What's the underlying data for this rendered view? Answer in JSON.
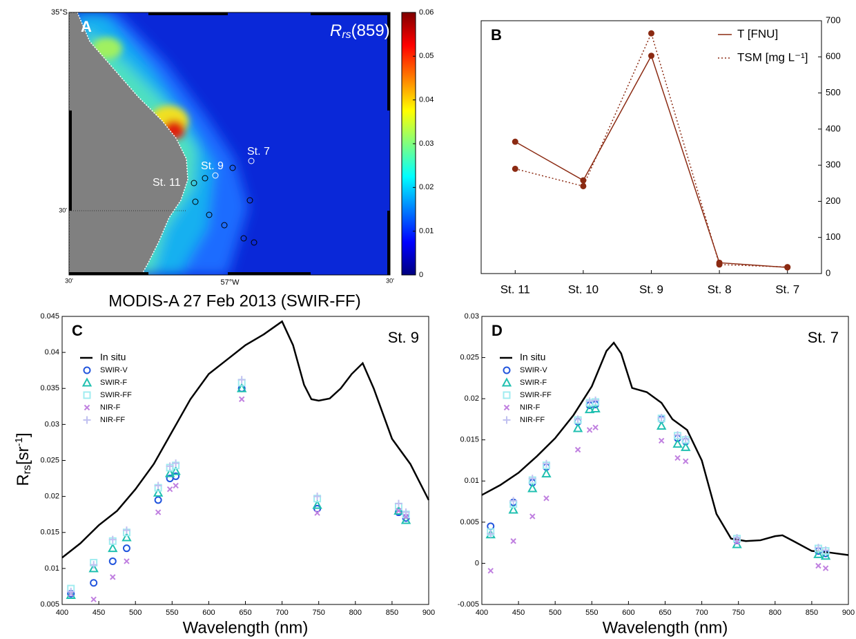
{
  "chart_data": [
    {
      "type": "map",
      "panel": "A",
      "title": "MODIS-A 27 Feb 2013 (SWIR-FF)",
      "annotation": [
        "R",
        "rs",
        "(859)"
      ],
      "lat_labels": [
        "35°S",
        "30'"
      ],
      "lon_labels": [
        "30'",
        "57°W",
        "30'"
      ],
      "stations": [
        "St. 7",
        "St. 9",
        "St. 11"
      ],
      "colorbar": {
        "lim": [
          0,
          0.06
        ],
        "ticks": [
          0,
          0.01,
          0.02,
          0.03,
          0.04,
          0.05,
          0.06
        ],
        "colormap": "jet"
      }
    },
    {
      "type": "line",
      "panel": "B",
      "categories": [
        "St. 11",
        "St. 10",
        "St. 9",
        "St. 8",
        "St. 7"
      ],
      "series": [
        {
          "name": "T [FNU]",
          "color": "#8b2a12",
          "style": "solid",
          "axis": "y2",
          "values": [
            365,
            258,
            603,
            30,
            17
          ]
        },
        {
          "name": "TSM [mg L⁻¹]",
          "color": "#8b2a12",
          "style": "dotted",
          "axis": "y2",
          "values": [
            290,
            242,
            665,
            25,
            18
          ]
        }
      ],
      "y2lim": [
        0,
        700
      ],
      "y2ticks": [
        0,
        100,
        200,
        300,
        400,
        500,
        600,
        700
      ]
    },
    {
      "type": "line",
      "panel": "C",
      "annotation": "St. 9",
      "xlabel": "Wavelength (nm)",
      "ylabel": [
        "R",
        "rs",
        "[sr",
        "-1",
        "]"
      ],
      "xlim": [
        400,
        900
      ],
      "xticks": [
        400,
        450,
        500,
        550,
        600,
        650,
        700,
        750,
        800,
        850,
        900
      ],
      "ylim": [
        0.005,
        0.045
      ],
      "yticks": [
        0.005,
        0.01,
        0.015,
        0.02,
        0.025,
        0.03,
        0.035,
        0.04,
        0.045
      ],
      "x": [
        412,
        443,
        469,
        488,
        531,
        547,
        555,
        645,
        667,
        678,
        748,
        859,
        869
      ],
      "series": [
        {
          "name": "In situ",
          "color": "#000000",
          "x": [
            400,
            425,
            450,
            475,
            500,
            525,
            550,
            575,
            600,
            625,
            650,
            675,
            700,
            715,
            730,
            740,
            750,
            765,
            780,
            795,
            810,
            825,
            850,
            875,
            900
          ],
          "values": [
            0.0115,
            0.0135,
            0.016,
            0.018,
            0.021,
            0.0245,
            0.029,
            0.0335,
            0.037,
            0.039,
            0.041,
            0.0425,
            0.0443,
            0.041,
            0.0355,
            0.0335,
            0.0333,
            0.0336,
            0.035,
            0.037,
            0.0385,
            0.035,
            0.028,
            0.0245,
            0.0195
          ]
        },
        {
          "name": "SWIR-V",
          "color": "#2255dd",
          "marker": "circle",
          "values": [
            0.0065,
            0.008,
            0.011,
            0.0128,
            0.0195,
            0.0225,
            0.0228,
            0.035,
            null,
            null,
            0.0183,
            0.0178,
            0.017
          ]
        },
        {
          "name": "SWIR-F",
          "color": "#20c0b0",
          "marker": "triangle",
          "values": [
            0.0063,
            0.01,
            0.0128,
            0.0143,
            0.0205,
            0.0232,
            0.0235,
            0.035,
            null,
            null,
            0.0188,
            0.018,
            0.0167
          ]
        },
        {
          "name": "SWIR-FF",
          "color": "#a0ecf0",
          "marker": "square",
          "values": [
            0.0072,
            0.0108,
            0.0138,
            0.015,
            0.0212,
            0.024,
            0.0243,
            0.0358,
            null,
            null,
            0.0197,
            0.0186,
            0.0175
          ]
        },
        {
          "name": "NIR-F",
          "color": "#c080e0",
          "marker": "x",
          "values": [
            0.0065,
            0.0057,
            0.0088,
            0.011,
            0.0178,
            0.021,
            0.0215,
            0.0335,
            null,
            null,
            0.0177,
            0.018,
            0.0172
          ]
        },
        {
          "name": "NIR-FF",
          "color": "#c0c0f0",
          "marker": "plus",
          "values": [
            0.0068,
            0.0105,
            0.014,
            0.0153,
            0.0215,
            0.0242,
            0.0246,
            0.0362,
            null,
            null,
            0.02,
            0.019,
            0.0178
          ]
        }
      ]
    },
    {
      "type": "line",
      "panel": "D",
      "annotation": "St. 7",
      "xlabel": "Wavelength (nm)",
      "xlim": [
        400,
        900
      ],
      "xticks": [
        400,
        450,
        500,
        550,
        600,
        650,
        700,
        750,
        800,
        850,
        900
      ],
      "ylim": [
        -0.005,
        0.03
      ],
      "yticks": [
        -0.005,
        0,
        0.005,
        0.01,
        0.015,
        0.02,
        0.025,
        0.03
      ],
      "x": [
        412,
        443,
        469,
        488,
        531,
        547,
        555,
        645,
        667,
        678,
        748,
        859,
        869
      ],
      "series": [
        {
          "name": "In situ",
          "color": "#000000",
          "x": [
            400,
            425,
            450,
            475,
            500,
            525,
            550,
            570,
            580,
            590,
            605,
            625,
            645,
            660,
            680,
            700,
            720,
            740,
            760,
            780,
            800,
            810,
            825,
            850,
            875,
            900
          ],
          "values": [
            0.0083,
            0.0095,
            0.011,
            0.013,
            0.0152,
            0.018,
            0.0215,
            0.0258,
            0.0268,
            0.0255,
            0.0213,
            0.0208,
            0.0195,
            0.0175,
            0.0162,
            0.0125,
            0.006,
            0.003,
            0.0027,
            0.0028,
            0.0033,
            0.0034,
            0.0027,
            0.0015,
            0.0013,
            0.001
          ]
        },
        {
          "name": "SWIR-V",
          "color": "#2255dd",
          "marker": "circle",
          "values": [
            0.0045,
            0.0074,
            0.0098,
            0.0117,
            0.0172,
            0.0192,
            0.0193,
            0.0175,
            0.0152,
            0.0148,
            0.0028,
            0.0015,
            0.0012
          ]
        },
        {
          "name": "SWIR-F",
          "color": "#20c0b0",
          "marker": "triangle",
          "values": [
            0.0035,
            0.0065,
            0.0091,
            0.0109,
            0.0164,
            0.0187,
            0.0188,
            0.0167,
            0.0145,
            0.0141,
            0.0023,
            0.0011,
            0.0009
          ]
        },
        {
          "name": "SWIR-FF",
          "color": "#a0ecf0",
          "marker": "square",
          "values": [
            0.0038,
            0.0072,
            0.0101,
            0.0119,
            0.0174,
            0.0195,
            0.0196,
            0.0176,
            0.0155,
            0.015,
            0.003,
            0.0018,
            0.0015
          ]
        },
        {
          "name": "NIR-F",
          "color": "#c080e0",
          "marker": "x",
          "values": [
            -0.0009,
            0.0027,
            0.0057,
            0.0079,
            0.0138,
            0.0162,
            0.0165,
            0.0149,
            0.0128,
            0.0124,
            0.0026,
            -0.0003,
            -0.0006
          ]
        },
        {
          "name": "NIR-FF",
          "color": "#c0c0f0",
          "marker": "plus",
          "values": [
            0.0036,
            0.0076,
            0.0103,
            0.0121,
            0.0175,
            0.0197,
            0.0198,
            0.0177,
            0.0156,
            0.0151,
            0.0031,
            0.0019,
            0.0016
          ]
        }
      ]
    }
  ]
}
